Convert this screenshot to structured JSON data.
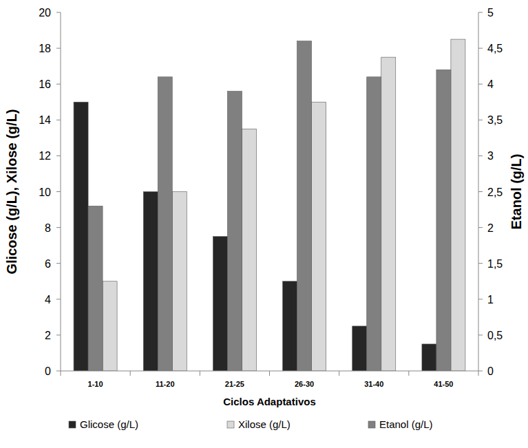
{
  "chart_data": {
    "type": "bar",
    "categories": [
      "1-10",
      "11-20",
      "21-25",
      "26-30",
      "31-40",
      "41-50"
    ],
    "x_label": "Ciclos Adaptativos",
    "y_label": "Glicose (g/L), Xilose (g/L)",
    "y2_label": "Etanol (g/L)",
    "series": [
      {
        "name": "Glicose (g/L)",
        "color": "#262626",
        "values": [
          15,
          10,
          7.5,
          5,
          2.5,
          1.5
        ]
      },
      {
        "name": "Xilose (g/L)",
        "color": "#d9d9d9",
        "values": [
          5,
          10,
          13.5,
          15,
          17.5,
          18.5
        ]
      },
      {
        "name": "Etanol (g/L)",
        "color": "#808080",
        "axis": "y2",
        "values": [
          2.3,
          4.1,
          3.9,
          4.6,
          4.1,
          4.2
        ]
      }
    ],
    "ylim": [
      0,
      20
    ],
    "yticks": [
      0,
      2,
      4,
      6,
      8,
      10,
      12,
      14,
      16,
      18,
      20
    ],
    "y2lim": [
      0,
      5
    ],
    "y2ticks": [
      0,
      {
        "value": 0.5,
        "label": "0,5"
      },
      1,
      {
        "value": 1.5,
        "label": "1,5"
      },
      2,
      {
        "value": 2.5,
        "label": "2,5"
      },
      3,
      {
        "value": 3.5,
        "label": "3,5"
      },
      4,
      {
        "value": 4.5,
        "label": "4,5"
      },
      5
    ],
    "legend": "bottom",
    "grid": false
  }
}
